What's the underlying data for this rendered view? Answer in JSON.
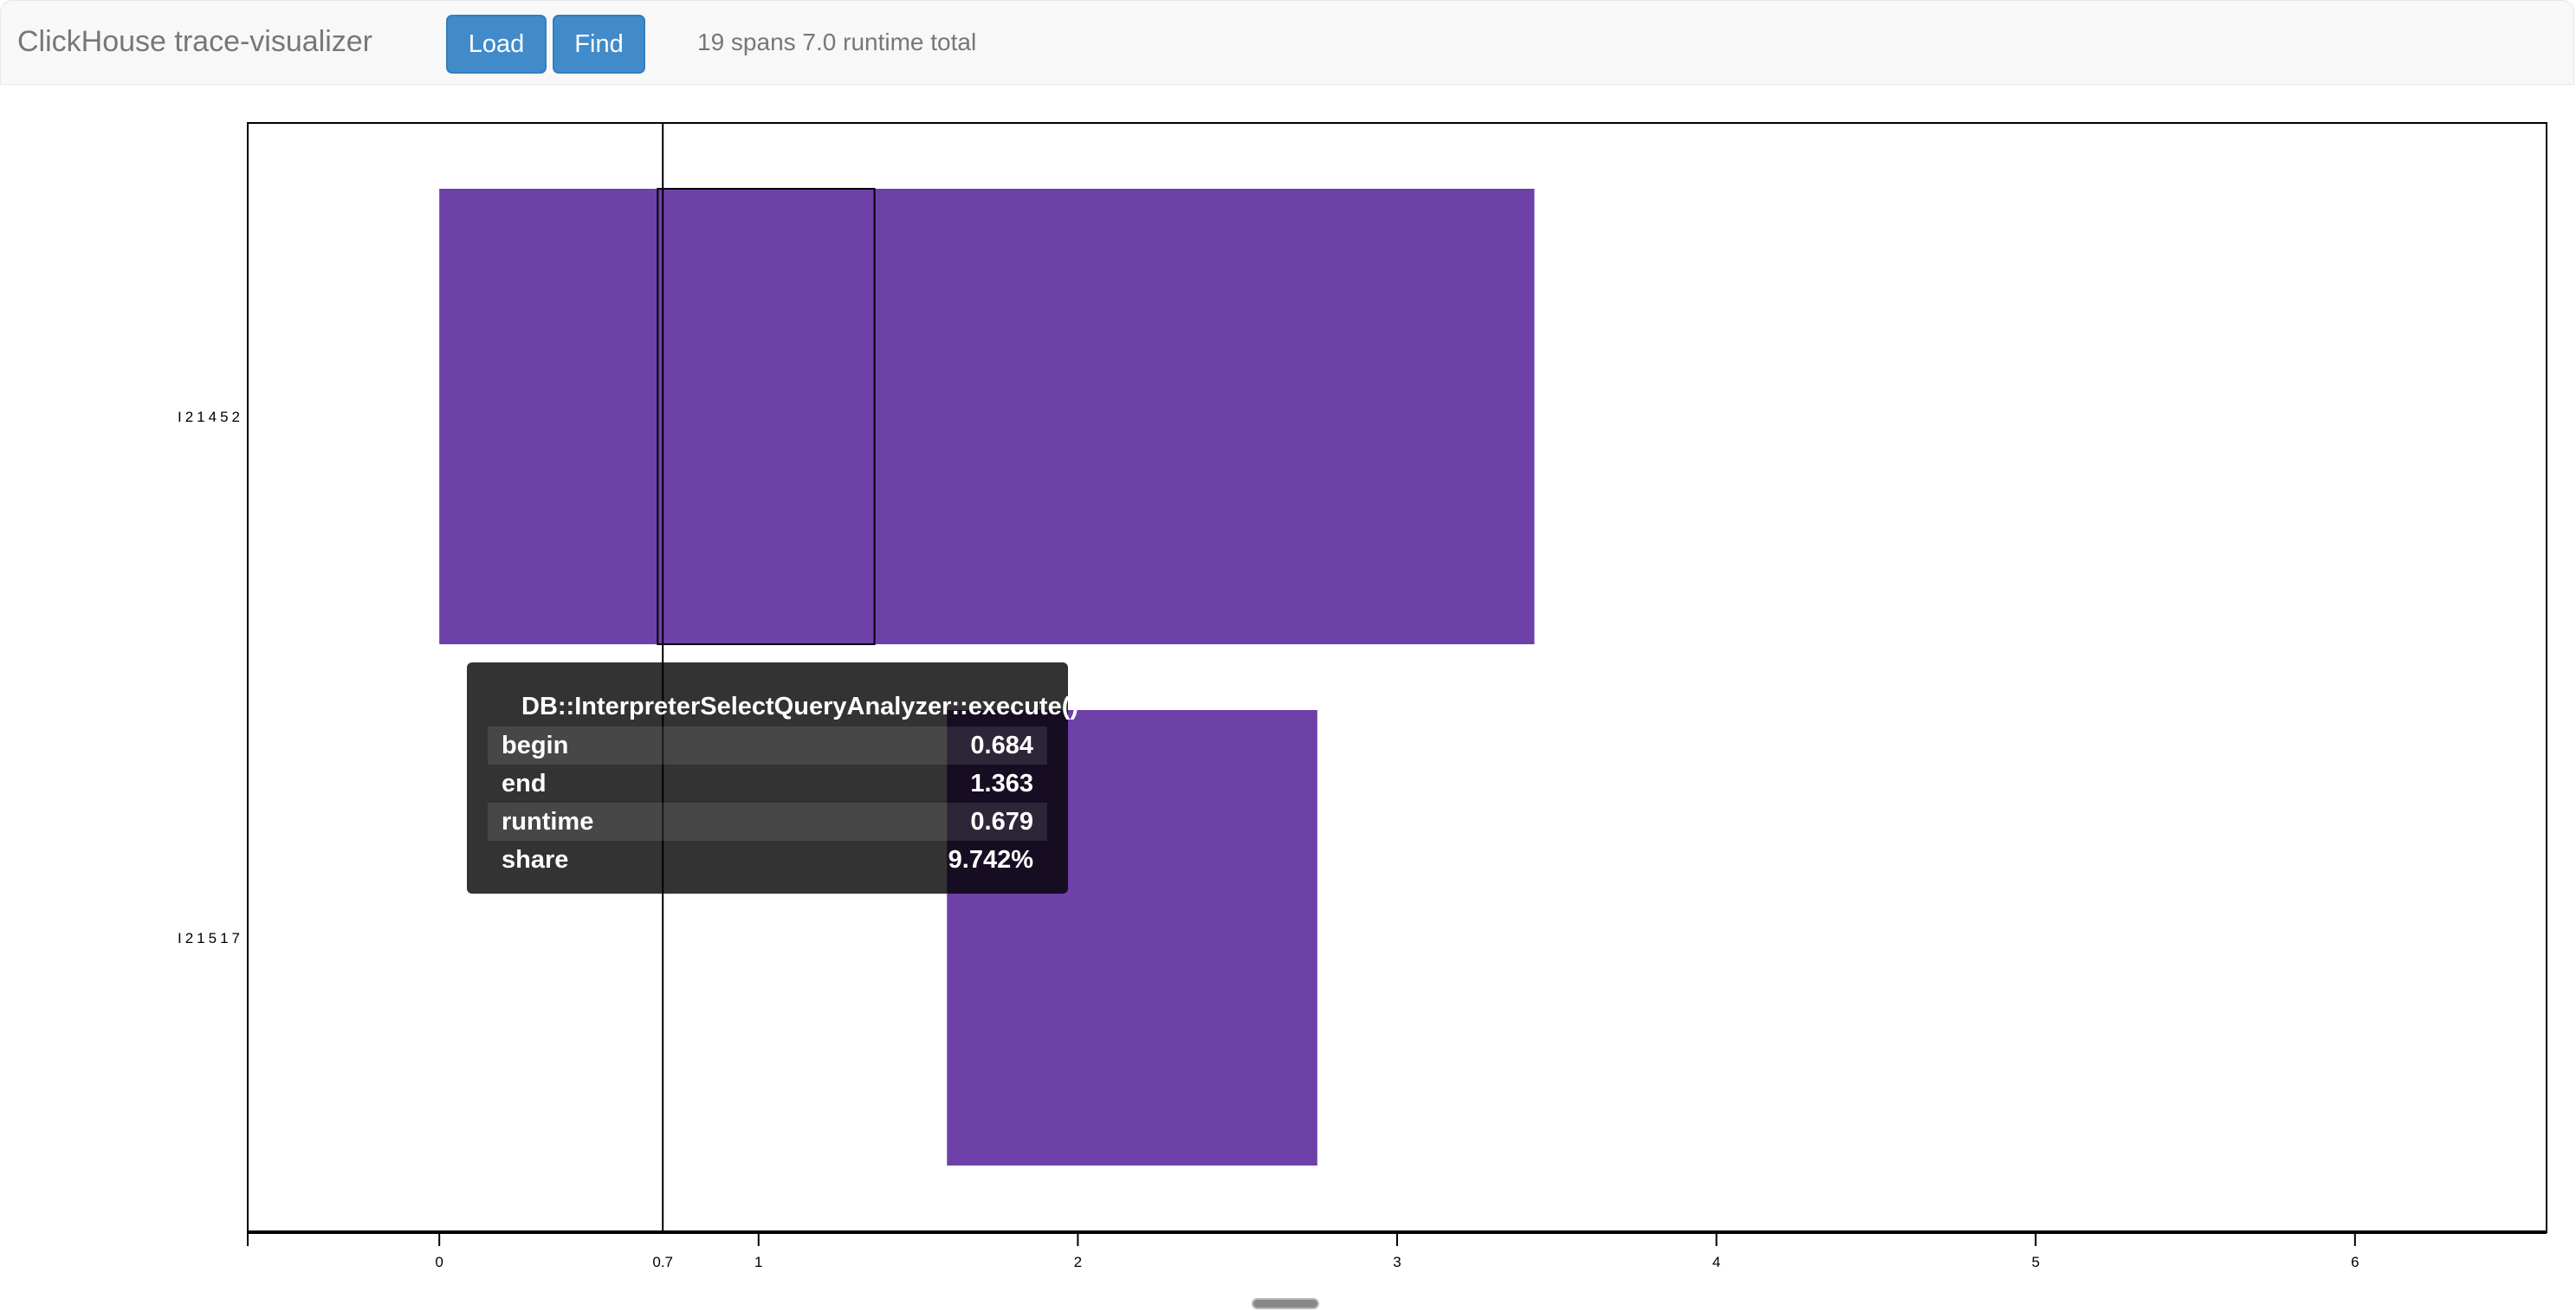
{
  "header": {
    "title": "ClickHouse trace-visualizer",
    "load_label": "Load",
    "find_label": "Find",
    "status": "19 spans 7.0 runtime total"
  },
  "colors": {
    "bar": "#6e41a9",
    "button": "#428bca"
  },
  "chart_data": {
    "type": "bar",
    "orientation": "horizontal-range",
    "categories": [
      "I21452",
      "I21517"
    ],
    "series": [
      {
        "category": "I21452",
        "begin": 0.0,
        "end": 3.43
      },
      {
        "category": "I21517",
        "begin": 1.59,
        "end": 2.75
      }
    ],
    "highlighted": {
      "category": "I21452",
      "begin": 0.684,
      "end": 1.363
    },
    "cursor": {
      "value": 0.7,
      "label": "0.7"
    },
    "x_ticks": [
      "0",
      "1",
      "2",
      "3",
      "4",
      "5",
      "6"
    ],
    "xlim": [
      -0.6,
      6.6
    ],
    "grid": false
  },
  "tooltip": {
    "title": "DB::InterpreterSelectQueryAnalyzer::execute()",
    "rows": [
      {
        "label": "begin",
        "value": "0.684"
      },
      {
        "label": "end",
        "value": "1.363"
      },
      {
        "label": "runtime",
        "value": "0.679"
      },
      {
        "label": "share",
        "value": "9.742%"
      }
    ]
  }
}
